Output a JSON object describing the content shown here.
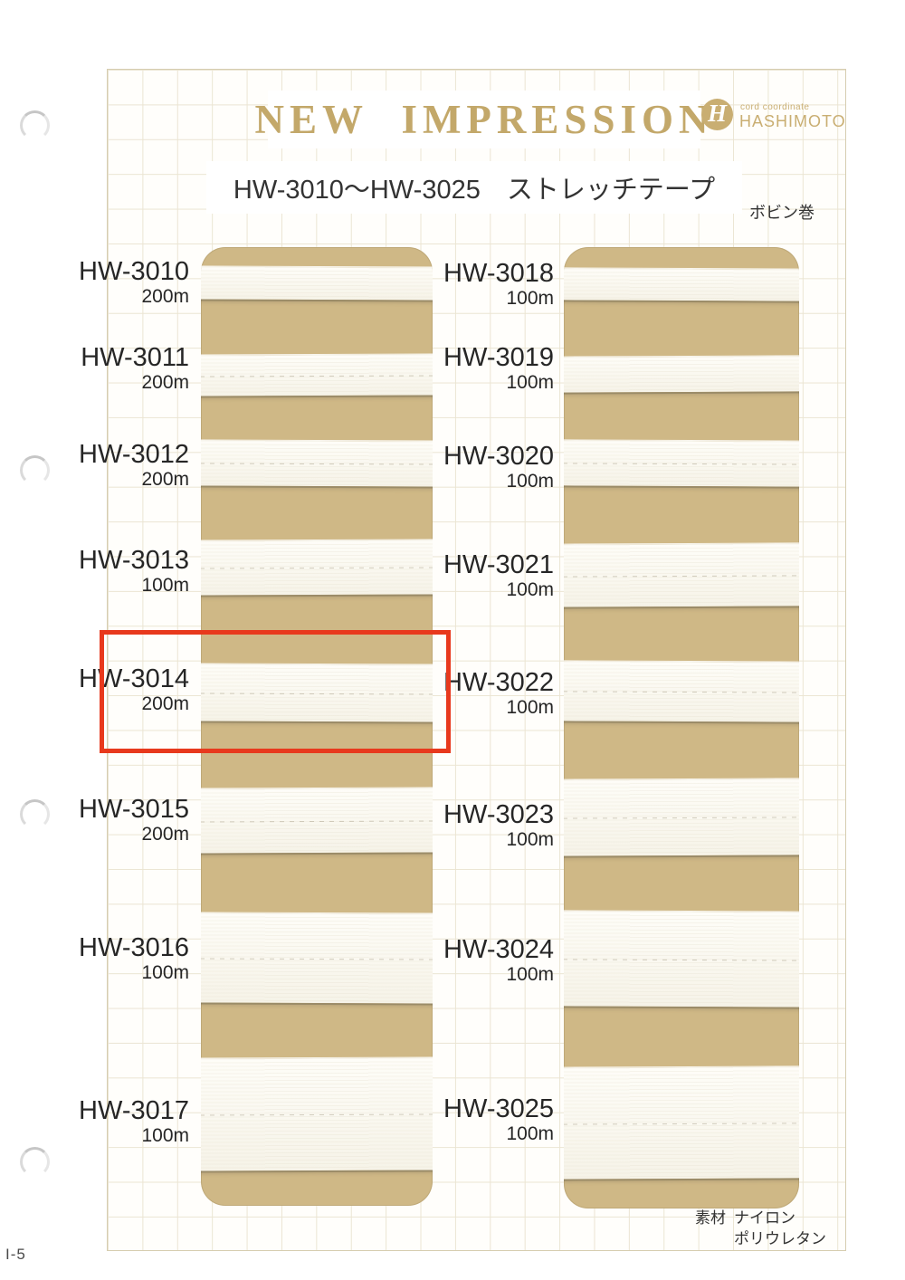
{
  "document": {
    "page_label": "I-5",
    "header": {
      "title": "NEW IMPRESSION",
      "logo": {
        "monogram": "H",
        "tagline": "cord coordinate",
        "brand": "HASHIMOTO"
      },
      "subtitle": "HW-3010〜HW-3025　ストレッチテープ",
      "note": "ボビン巻"
    },
    "samples": {
      "left": [
        {
          "code": "HW-3010",
          "length": "200m"
        },
        {
          "code": "HW-3011",
          "length": "200m"
        },
        {
          "code": "HW-3012",
          "length": "200m"
        },
        {
          "code": "HW-3013",
          "length": "100m"
        },
        {
          "code": "HW-3014",
          "length": "200m",
          "highlighted": true
        },
        {
          "code": "HW-3015",
          "length": "200m"
        },
        {
          "code": "HW-3016",
          "length": "100m"
        },
        {
          "code": "HW-3017",
          "length": "100m"
        }
      ],
      "right": [
        {
          "code": "HW-3018",
          "length": "100m"
        },
        {
          "code": "HW-3019",
          "length": "100m"
        },
        {
          "code": "HW-3020",
          "length": "100m"
        },
        {
          "code": "HW-3021",
          "length": "100m"
        },
        {
          "code": "HW-3022",
          "length": "100m"
        },
        {
          "code": "HW-3023",
          "length": "100m"
        },
        {
          "code": "HW-3024",
          "length": "100m"
        },
        {
          "code": "HW-3025",
          "length": "100m"
        }
      ]
    },
    "highlight": {
      "code": "HW-3014",
      "color": "#e8391d"
    },
    "footer": {
      "material_label": "素材",
      "materials": [
        "ナイロン",
        "ポリウレタン"
      ]
    },
    "colors": {
      "title_gold": "#c3a86a",
      "card_tan": "#cfb886",
      "tape_white": "#faf8f0",
      "highlight_red": "#e8391d"
    }
  }
}
